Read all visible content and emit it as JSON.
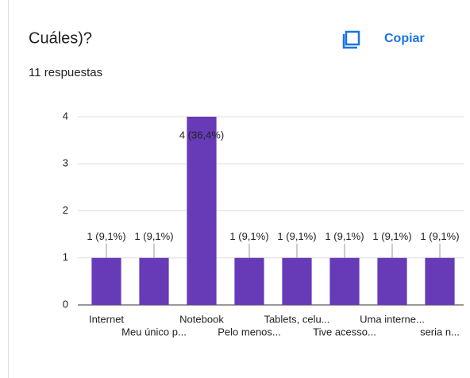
{
  "header": {
    "title": "Cuáles)?",
    "responses": "11 respuestas",
    "copy_button": "Copiar"
  },
  "chart_data": {
    "type": "bar",
    "categories": [
      "Internet",
      "Meu único p...",
      "Notebook",
      "Pelo menos...",
      "Tablets, celu...",
      "Tive acesso...",
      "Uma interne...",
      "seria n..."
    ],
    "values": [
      1,
      1,
      4,
      1,
      1,
      1,
      1,
      1
    ],
    "value_labels": [
      "1 (9,1%)",
      "1 (9,1%)",
      "4 (36,4%)",
      "1 (9,1%)",
      "1 (9,1%)",
      "1 (9,1%)",
      "1 (9,1%)",
      "1 (9,1%)"
    ],
    "color": "#673ab7",
    "ylim": [
      0,
      4
    ],
    "yticks": [
      0,
      1,
      2,
      3,
      4
    ],
    "grid": true
  }
}
